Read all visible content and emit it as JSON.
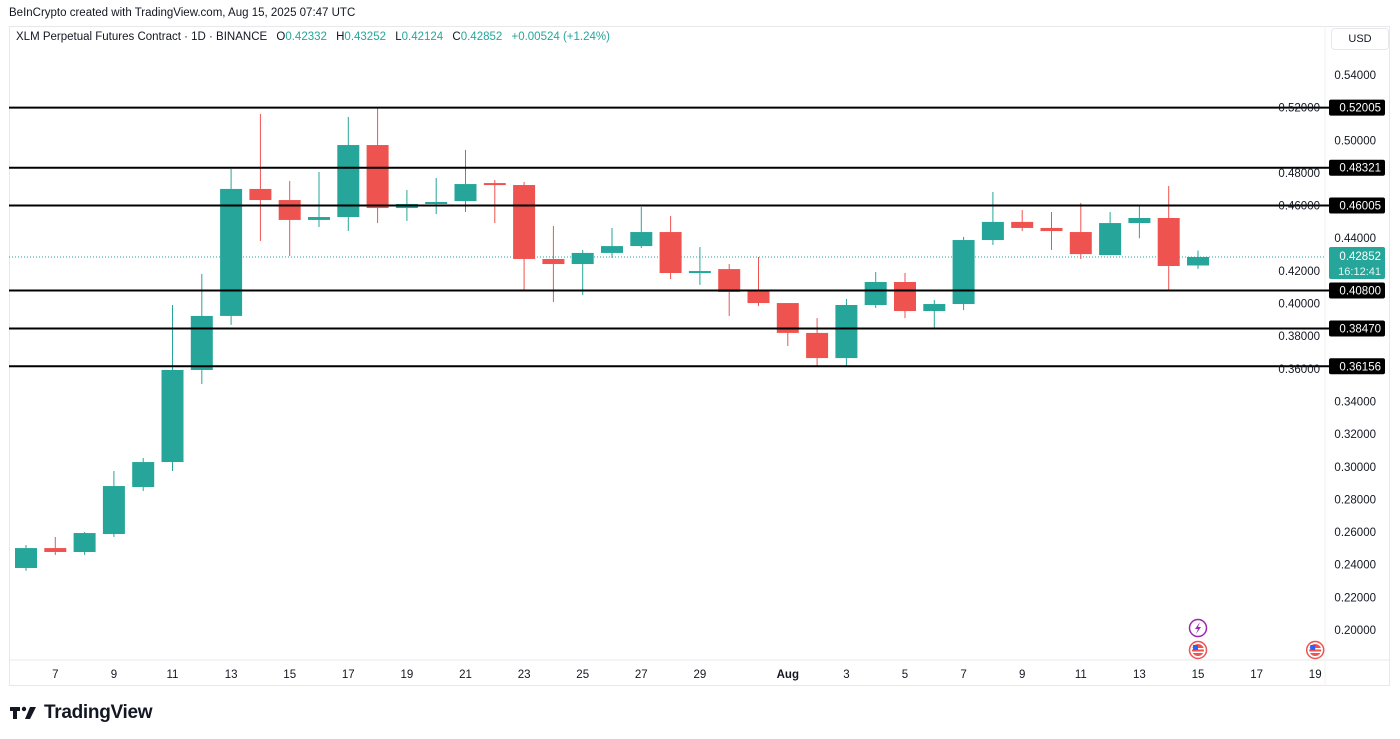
{
  "credit": "BeInCrypto created with TradingView.com, Aug 15, 2025 07:47 UTC",
  "legend": {
    "symbol": "XLM Perpetual Futures Contract · 1D · BINANCE",
    "o_label": "O",
    "o": "0.42332",
    "h_label": "H",
    "h": "0.43252",
    "l_label": "L",
    "l": "0.42124",
    "c_label": "C",
    "c": "0.42852",
    "change": "+0.00524 (+1.24%)"
  },
  "currency_button": "USD",
  "brand": "TradingView",
  "colors": {
    "up": "#26a69a",
    "down": "#ef5350",
    "level_line": "#000000",
    "grid_text": "#131722"
  },
  "chart_data": {
    "type": "candlestick",
    "title": "",
    "yaxis": {
      "range": [
        0.19,
        0.55
      ],
      "ticks": [
        "0.54000",
        "0.52000",
        "0.50000",
        "0.48000",
        "0.46000",
        "0.44000",
        "0.42000",
        "0.40000",
        "0.38000",
        "0.36000",
        "0.34000",
        "0.32000",
        "0.30000",
        "0.28000",
        "0.26000",
        "0.24000",
        "0.22000",
        "0.20000"
      ]
    },
    "xaxis": {
      "ticks": [
        {
          "date": "2025-07-07",
          "label": "7"
        },
        {
          "date": "2025-07-09",
          "label": "9"
        },
        {
          "date": "2025-07-11",
          "label": "11"
        },
        {
          "date": "2025-07-13",
          "label": "13"
        },
        {
          "date": "2025-07-15",
          "label": "15"
        },
        {
          "date": "2025-07-17",
          "label": "17"
        },
        {
          "date": "2025-07-19",
          "label": "19"
        },
        {
          "date": "2025-07-21",
          "label": "21"
        },
        {
          "date": "2025-07-23",
          "label": "23"
        },
        {
          "date": "2025-07-25",
          "label": "25"
        },
        {
          "date": "2025-07-27",
          "label": "27"
        },
        {
          "date": "2025-07-29",
          "label": "29"
        },
        {
          "date": "2025-08-01",
          "label": "Aug"
        },
        {
          "date": "2025-08-03",
          "label": "3"
        },
        {
          "date": "2025-08-05",
          "label": "5"
        },
        {
          "date": "2025-08-07",
          "label": "7"
        },
        {
          "date": "2025-08-09",
          "label": "9"
        },
        {
          "date": "2025-08-11",
          "label": "11"
        },
        {
          "date": "2025-08-13",
          "label": "13"
        },
        {
          "date": "2025-08-15",
          "label": "15"
        },
        {
          "date": "2025-08-17",
          "label": "17"
        },
        {
          "date": "2025-08-19",
          "label": "19"
        }
      ]
    },
    "grid": false,
    "candles": [
      {
        "date": "2025-07-06",
        "o": 0.238,
        "h": 0.2521,
        "l": 0.2362,
        "c": 0.2502
      },
      {
        "date": "2025-07-07",
        "o": 0.2502,
        "h": 0.257,
        "l": 0.246,
        "c": 0.2478
      },
      {
        "date": "2025-07-08",
        "o": 0.2478,
        "h": 0.26,
        "l": 0.246,
        "c": 0.2594
      },
      {
        "date": "2025-07-09",
        "o": 0.2588,
        "h": 0.2974,
        "l": 0.257,
        "c": 0.2882
      },
      {
        "date": "2025-07-10",
        "o": 0.2876,
        "h": 0.3054,
        "l": 0.2852,
        "c": 0.3029
      },
      {
        "date": "2025-07-11",
        "o": 0.3029,
        "h": 0.3991,
        "l": 0.2974,
        "c": 0.3593
      },
      {
        "date": "2025-07-12",
        "o": 0.3593,
        "h": 0.4181,
        "l": 0.3507,
        "c": 0.3924
      },
      {
        "date": "2025-07-13",
        "o": 0.3924,
        "h": 0.4824,
        "l": 0.3869,
        "c": 0.4702
      },
      {
        "date": "2025-07-14",
        "o": 0.4702,
        "h": 0.5161,
        "l": 0.4383,
        "c": 0.4634
      },
      {
        "date": "2025-07-15",
        "o": 0.4634,
        "h": 0.4751,
        "l": 0.4291,
        "c": 0.4512
      },
      {
        "date": "2025-07-16",
        "o": 0.4512,
        "h": 0.4806,
        "l": 0.4469,
        "c": 0.453
      },
      {
        "date": "2025-07-17",
        "o": 0.453,
        "h": 0.5143,
        "l": 0.4444,
        "c": 0.4971
      },
      {
        "date": "2025-07-18",
        "o": 0.4971,
        "h": 0.5204,
        "l": 0.4493,
        "c": 0.4585
      },
      {
        "date": "2025-07-19",
        "o": 0.4585,
        "h": 0.4696,
        "l": 0.4506,
        "c": 0.461
      },
      {
        "date": "2025-07-20",
        "o": 0.461,
        "h": 0.4769,
        "l": 0.4548,
        "c": 0.4622
      },
      {
        "date": "2025-07-21",
        "o": 0.4628,
        "h": 0.4941,
        "l": 0.4561,
        "c": 0.4732
      },
      {
        "date": "2025-07-22",
        "o": 0.4738,
        "h": 0.4757,
        "l": 0.4493,
        "c": 0.4732
      },
      {
        "date": "2025-07-23",
        "o": 0.4726,
        "h": 0.4745,
        "l": 0.4083,
        "c": 0.4273
      },
      {
        "date": "2025-07-24",
        "o": 0.4273,
        "h": 0.4475,
        "l": 0.4009,
        "c": 0.4242
      },
      {
        "date": "2025-07-25",
        "o": 0.4242,
        "h": 0.4328,
        "l": 0.4052,
        "c": 0.431
      },
      {
        "date": "2025-07-26",
        "o": 0.431,
        "h": 0.4463,
        "l": 0.4279,
        "c": 0.4352
      },
      {
        "date": "2025-07-27",
        "o": 0.4352,
        "h": 0.4591,
        "l": 0.434,
        "c": 0.4438
      },
      {
        "date": "2025-07-28",
        "o": 0.4438,
        "h": 0.4536,
        "l": 0.415,
        "c": 0.4187
      },
      {
        "date": "2025-07-29",
        "o": 0.4187,
        "h": 0.4346,
        "l": 0.4114,
        "c": 0.4199
      },
      {
        "date": "2025-07-30",
        "o": 0.4211,
        "h": 0.4242,
        "l": 0.3924,
        "c": 0.4071
      },
      {
        "date": "2025-07-31",
        "o": 0.4077,
        "h": 0.4285,
        "l": 0.3985,
        "c": 0.4003
      },
      {
        "date": "2025-08-01",
        "o": 0.4003,
        "h": 0.4003,
        "l": 0.374,
        "c": 0.382
      },
      {
        "date": "2025-08-02",
        "o": 0.382,
        "h": 0.3911,
        "l": 0.3611,
        "c": 0.3666
      },
      {
        "date": "2025-08-03",
        "o": 0.3666,
        "h": 0.4028,
        "l": 0.3611,
        "c": 0.3991
      },
      {
        "date": "2025-08-04",
        "o": 0.3991,
        "h": 0.4193,
        "l": 0.3973,
        "c": 0.4132
      },
      {
        "date": "2025-08-05",
        "o": 0.4132,
        "h": 0.4187,
        "l": 0.3911,
        "c": 0.3954
      },
      {
        "date": "2025-08-06",
        "o": 0.3954,
        "h": 0.4022,
        "l": 0.385,
        "c": 0.3997
      },
      {
        "date": "2025-08-07",
        "o": 0.3997,
        "h": 0.4408,
        "l": 0.396,
        "c": 0.4389
      },
      {
        "date": "2025-08-08",
        "o": 0.4389,
        "h": 0.4683,
        "l": 0.4359,
        "c": 0.45
      },
      {
        "date": "2025-08-09",
        "o": 0.45,
        "h": 0.4573,
        "l": 0.4444,
        "c": 0.4463
      },
      {
        "date": "2025-08-10",
        "o": 0.4463,
        "h": 0.4561,
        "l": 0.4328,
        "c": 0.4444
      },
      {
        "date": "2025-08-11",
        "o": 0.4438,
        "h": 0.4616,
        "l": 0.4273,
        "c": 0.4303
      },
      {
        "date": "2025-08-12",
        "o": 0.4297,
        "h": 0.4561,
        "l": 0.4297,
        "c": 0.4493
      },
      {
        "date": "2025-08-13",
        "o": 0.4493,
        "h": 0.4598,
        "l": 0.44,
        "c": 0.4524
      },
      {
        "date": "2025-08-14",
        "o": 0.4524,
        "h": 0.472,
        "l": 0.4077,
        "c": 0.423
      },
      {
        "date": "2025-08-15",
        "o": 0.42332,
        "h": 0.43252,
        "l": 0.42124,
        "c": 0.42852
      }
    ],
    "levels": [
      "0.52005",
      "0.48321",
      "0.46005",
      "0.40800",
      "0.38470",
      "0.36156"
    ],
    "current_price": {
      "value": "0.42852",
      "countdown": "16:12:41"
    },
    "events": [
      {
        "date": "2025-08-15",
        "icon": "lightning-icon"
      },
      {
        "date": "2025-08-15",
        "icon": "us-flag-icon"
      },
      {
        "date": "2025-08-19",
        "icon": "us-flag-icon"
      }
    ]
  }
}
